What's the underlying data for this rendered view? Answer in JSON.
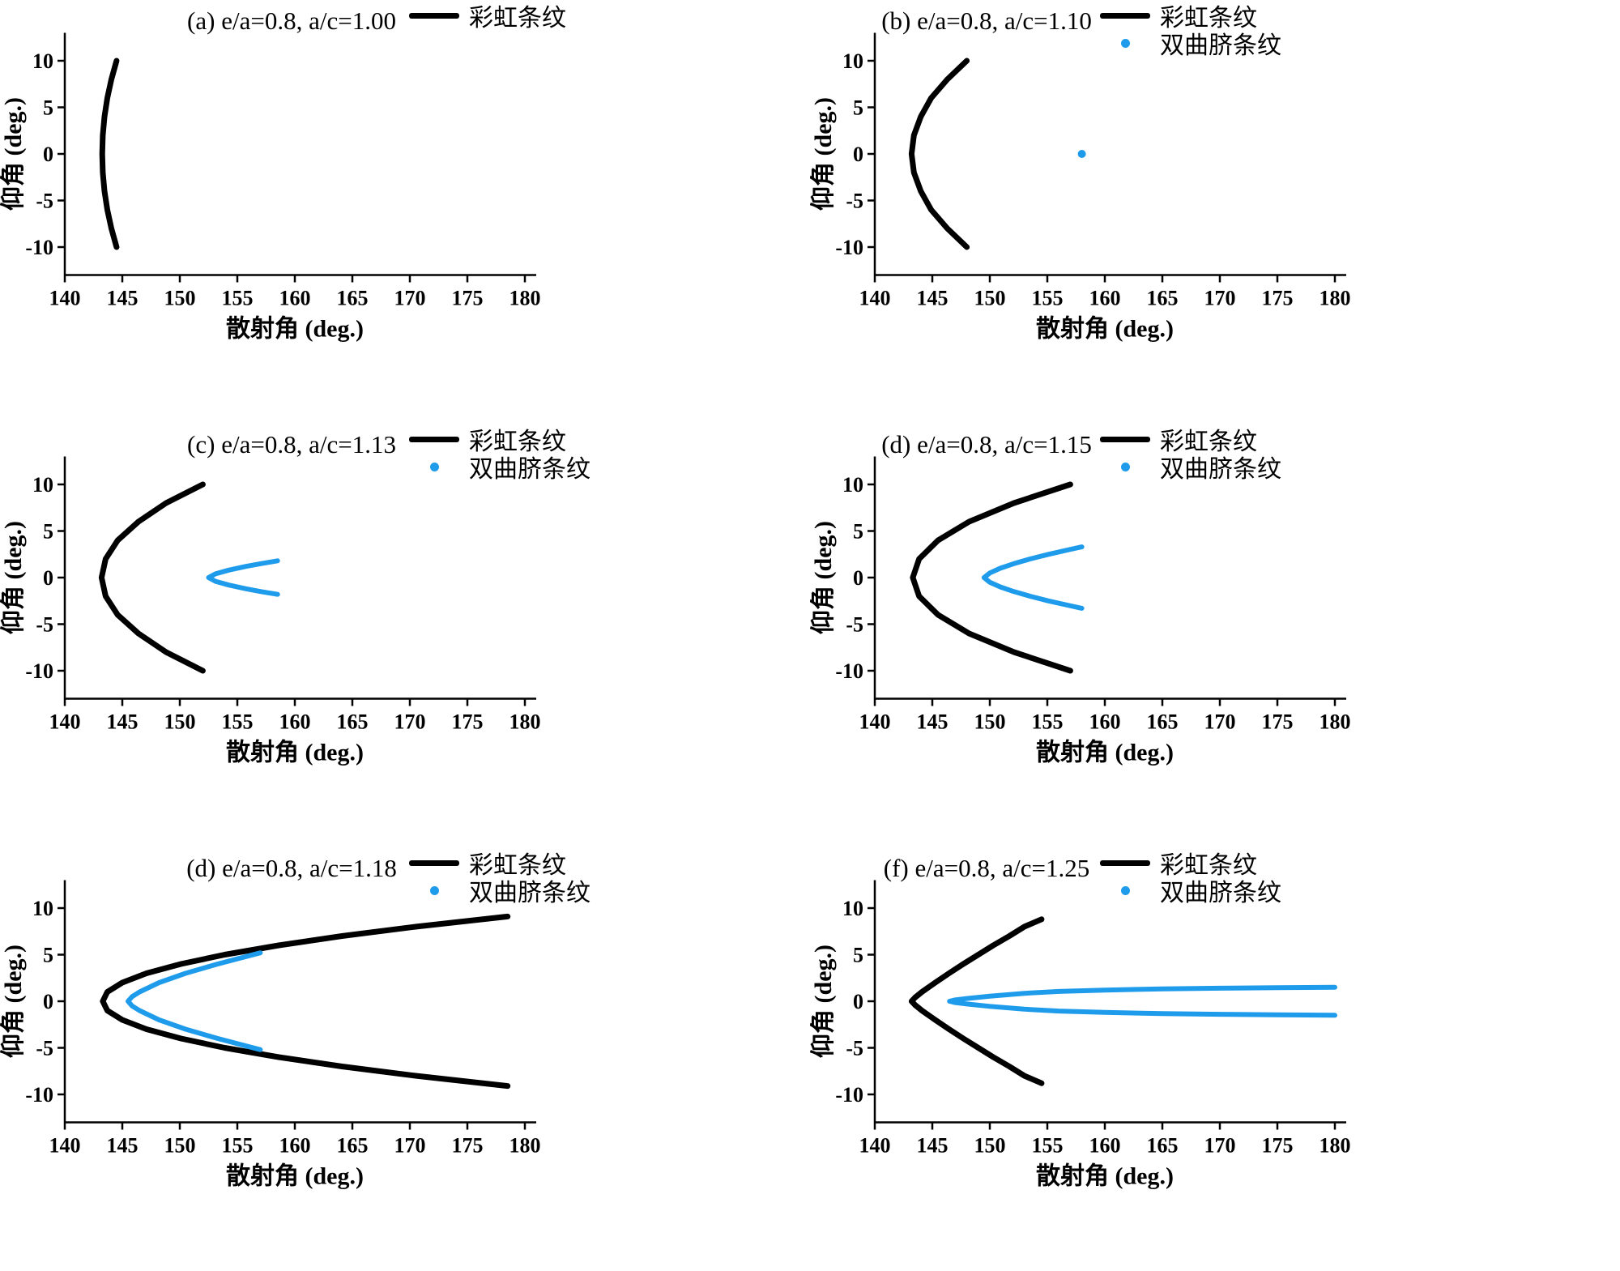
{
  "figure": {
    "background": "#ffffff",
    "colors": {
      "rainbow": "#000000",
      "hyperbolic": "#1E9CEB"
    }
  },
  "chart_data": [
    {
      "id": "a",
      "type": "line",
      "title": "(a) e/a=0.8, a/c=1.00",
      "xlabel": "散射角 (deg.)",
      "ylabel": "仰角 (deg.)",
      "xlim": [
        140,
        181
      ],
      "ylim": [
        -13,
        13
      ],
      "xticks": [
        140,
        145,
        150,
        155,
        160,
        165,
        170,
        175,
        180
      ],
      "yticks": [
        -10,
        -5,
        0,
        5,
        10
      ],
      "grid": false,
      "legend": [
        {
          "label": "彩虹条纹",
          "color": "#000000",
          "marker": "line"
        }
      ],
      "series": [
        {
          "name": "彩虹条纹",
          "color": "#000000",
          "style": "line",
          "width": 7,
          "points": [
            [
              144.5,
              10
            ],
            [
              144.05,
              8
            ],
            [
              143.7,
              6
            ],
            [
              143.45,
              4
            ],
            [
              143.3,
              2
            ],
            [
              143.25,
              0
            ],
            [
              143.3,
              -2
            ],
            [
              143.45,
              -4
            ],
            [
              143.7,
              -6
            ],
            [
              144.05,
              -8
            ],
            [
              144.5,
              -10
            ]
          ]
        }
      ]
    },
    {
      "id": "b",
      "type": "line",
      "title": "(b) e/a=0.8, a/c=1.10",
      "xlabel": "散射角 (deg.)",
      "ylabel": "仰角 (deg.)",
      "xlim": [
        140,
        181
      ],
      "ylim": [
        -13,
        13
      ],
      "xticks": [
        140,
        145,
        150,
        155,
        160,
        165,
        170,
        175,
        180
      ],
      "yticks": [
        -10,
        -5,
        0,
        5,
        10
      ],
      "grid": false,
      "legend": [
        {
          "label": "彩虹条纹",
          "color": "#000000",
          "marker": "line"
        },
        {
          "label": "双曲脐条纹",
          "color": "#1E9CEB",
          "marker": "dot"
        }
      ],
      "series": [
        {
          "name": "彩虹条纹",
          "color": "#000000",
          "style": "line",
          "width": 7,
          "points": [
            [
              148,
              10
            ],
            [
              146.3,
              8
            ],
            [
              144.9,
              6
            ],
            [
              144,
              4
            ],
            [
              143.4,
              2
            ],
            [
              143.2,
              0
            ],
            [
              143.4,
              -2
            ],
            [
              144,
              -4
            ],
            [
              144.9,
              -6
            ],
            [
              146.3,
              -8
            ],
            [
              148,
              -10
            ]
          ]
        },
        {
          "name": "双曲脐条纹",
          "color": "#1E9CEB",
          "style": "dot",
          "width": 6,
          "points": [
            [
              158,
              0
            ]
          ]
        }
      ]
    },
    {
      "id": "c",
      "type": "line",
      "title": "(c) e/a=0.8, a/c=1.13",
      "xlabel": "散射角 (deg.)",
      "ylabel": "仰角 (deg.)",
      "xlim": [
        140,
        181
      ],
      "ylim": [
        -13,
        13
      ],
      "xticks": [
        140,
        145,
        150,
        155,
        160,
        165,
        170,
        175,
        180
      ],
      "yticks": [
        -10,
        -5,
        0,
        5,
        10
      ],
      "grid": false,
      "legend": [
        {
          "label": "彩虹条纹",
          "color": "#000000",
          "marker": "line"
        },
        {
          "label": "双曲脐条纹",
          "color": "#1E9CEB",
          "marker": "dot"
        }
      ],
      "series": [
        {
          "name": "彩虹条纹",
          "color": "#000000",
          "style": "line",
          "width": 7,
          "points": [
            [
              152,
              10
            ],
            [
              148.8,
              8
            ],
            [
              146.4,
              6
            ],
            [
              144.6,
              4
            ],
            [
              143.55,
              2
            ],
            [
              143.2,
              0
            ],
            [
              143.55,
              -2
            ],
            [
              144.6,
              -4
            ],
            [
              146.4,
              -6
            ],
            [
              148.8,
              -8
            ],
            [
              152,
              -10
            ]
          ]
        },
        {
          "name": "双曲脐条纹",
          "color": "#1E9CEB",
          "style": "line",
          "width": 6,
          "points": [
            [
              158.5,
              1.8
            ],
            [
              157.05,
              1.5
            ],
            [
              155.75,
              1.2
            ],
            [
              154.25,
              0.8
            ],
            [
              153.1,
              0.4
            ],
            [
              152.5,
              0
            ],
            [
              153.1,
              -0.4
            ],
            [
              154.25,
              -0.8
            ],
            [
              155.75,
              -1.2
            ],
            [
              157.05,
              -1.5
            ],
            [
              158.5,
              -1.8
            ]
          ]
        }
      ]
    },
    {
      "id": "d",
      "type": "line",
      "title": "(d) e/a=0.8, a/c=1.15",
      "xlabel": "散射角 (deg.)",
      "ylabel": "仰角 (deg.)",
      "xlim": [
        140,
        181
      ],
      "ylim": [
        -13,
        13
      ],
      "xticks": [
        140,
        145,
        150,
        155,
        160,
        165,
        170,
        175,
        180
      ],
      "yticks": [
        -10,
        -5,
        0,
        5,
        10
      ],
      "grid": false,
      "legend": [
        {
          "label": "彩虹条纹",
          "color": "#000000",
          "marker": "line"
        },
        {
          "label": "双曲脐条纹",
          "color": "#1E9CEB",
          "marker": "dot"
        }
      ],
      "series": [
        {
          "name": "彩虹条纹",
          "color": "#000000",
          "style": "line",
          "width": 7,
          "points": [
            [
              157,
              10
            ],
            [
              152.1,
              8
            ],
            [
              148.2,
              6
            ],
            [
              145.5,
              4
            ],
            [
              143.85,
              2
            ],
            [
              143.3,
              0
            ],
            [
              143.85,
              -2
            ],
            [
              145.5,
              -4
            ],
            [
              148.2,
              -6
            ],
            [
              152.1,
              -8
            ],
            [
              157,
              -10
            ]
          ]
        },
        {
          "name": "双曲脐条纹",
          "color": "#1E9CEB",
          "style": "line",
          "width": 6,
          "points": [
            [
              158,
              3.3
            ],
            [
              156.9,
              3
            ],
            [
              155.1,
              2.5
            ],
            [
              153.5,
              2
            ],
            [
              152.1,
              1.5
            ],
            [
              150.9,
              1
            ],
            [
              150,
              0.5
            ],
            [
              149.5,
              0
            ],
            [
              150,
              -0.5
            ],
            [
              150.9,
              -1
            ],
            [
              152.1,
              -1.5
            ],
            [
              153.5,
              -2
            ],
            [
              155.1,
              -2.5
            ],
            [
              156.9,
              -3
            ],
            [
              158,
              -3.3
            ]
          ]
        }
      ]
    },
    {
      "id": "e",
      "type": "line",
      "title": "(d) e/a=0.8, a/c=1.18",
      "xlabel": "散射角 (deg.)",
      "ylabel": "仰角 (deg.)",
      "xlim": [
        140,
        181
      ],
      "ylim": [
        -13,
        13
      ],
      "xticks": [
        140,
        145,
        150,
        155,
        160,
        165,
        170,
        175,
        180
      ],
      "yticks": [
        -10,
        -5,
        0,
        5,
        10
      ],
      "grid": false,
      "legend": [
        {
          "label": "彩虹条纹",
          "color": "#000000",
          "marker": "line"
        },
        {
          "label": "双曲脐条纹",
          "color": "#1E9CEB",
          "marker": "dot"
        }
      ],
      "series": [
        {
          "name": "彩虹条纹",
          "color": "#000000",
          "style": "line",
          "width": 7,
          "points": [
            [
              178.5,
              9.1
            ],
            [
              170.5,
              8
            ],
            [
              164.1,
              7
            ],
            [
              158.6,
              6
            ],
            [
              153.9,
              5
            ],
            [
              150.1,
              4
            ],
            [
              147.1,
              3
            ],
            [
              145,
              2
            ],
            [
              143.7,
              1
            ],
            [
              143.3,
              0
            ],
            [
              143.7,
              -1
            ],
            [
              145,
              -2
            ],
            [
              147.1,
              -3
            ],
            [
              150.1,
              -4
            ],
            [
              153.9,
              -5
            ],
            [
              158.6,
              -6
            ],
            [
              164.1,
              -7
            ],
            [
              170.5,
              -8
            ],
            [
              178.5,
              -9.1
            ]
          ]
        },
        {
          "name": "双曲脐条纹",
          "color": "#1E9CEB",
          "style": "line",
          "width": 6,
          "points": [
            [
              157,
              5.2
            ],
            [
              153.3,
              4
            ],
            [
              150.5,
              3
            ],
            [
              148.2,
              2
            ],
            [
              146.5,
              1
            ],
            [
              145.85,
              0.5
            ],
            [
              145.5,
              0
            ],
            [
              145.85,
              -0.5
            ],
            [
              146.5,
              -1
            ],
            [
              148.2,
              -2
            ],
            [
              150.5,
              -3
            ],
            [
              153.3,
              -4
            ],
            [
              157,
              -5.2
            ]
          ]
        }
      ]
    },
    {
      "id": "f",
      "type": "line",
      "title": "(f) e/a=0.8, a/c=1.25",
      "xlabel": "散射角 (deg.)",
      "ylabel": "仰角 (deg.)",
      "xlim": [
        140,
        181
      ],
      "ylim": [
        -13,
        13
      ],
      "xticks": [
        140,
        145,
        150,
        155,
        160,
        165,
        170,
        175,
        180
      ],
      "yticks": [
        -10,
        -5,
        0,
        5,
        10
      ],
      "grid": false,
      "legend": [
        {
          "label": "彩虹条纹",
          "color": "#000000",
          "marker": "line"
        },
        {
          "label": "双曲脐条纹",
          "color": "#1E9CEB",
          "marker": "dot"
        }
      ],
      "series": [
        {
          "name": "彩虹条纹",
          "color": "#000000",
          "style": "line",
          "width": 7,
          "points": [
            [
              154.5,
              8.8
            ],
            [
              153,
              8
            ],
            [
              151.7,
              7
            ],
            [
              150.3,
              6
            ],
            [
              149,
              5
            ],
            [
              147.7,
              4
            ],
            [
              146.45,
              3
            ],
            [
              145.25,
              2
            ],
            [
              144.1,
              1
            ],
            [
              143.5,
              0.4
            ],
            [
              143.2,
              0
            ],
            [
              143.5,
              -0.4
            ],
            [
              144.1,
              -1
            ],
            [
              145.25,
              -2
            ],
            [
              146.45,
              -3
            ],
            [
              147.7,
              -4
            ],
            [
              149,
              -5
            ],
            [
              150.3,
              -6
            ],
            [
              151.7,
              -7
            ],
            [
              153,
              -8
            ],
            [
              154.5,
              -8.8
            ]
          ]
        },
        {
          "name": "双曲脐条纹",
          "color": "#1E9CEB",
          "style": "line",
          "width": 6,
          "points": [
            [
              180,
              1.5
            ],
            [
              175,
              1.45
            ],
            [
              170,
              1.4
            ],
            [
              165,
              1.33
            ],
            [
              160,
              1.2
            ],
            [
              156,
              1.05
            ],
            [
              153,
              0.85
            ],
            [
              150,
              0.55
            ],
            [
              148,
              0.3
            ],
            [
              147,
              0.15
            ],
            [
              146.5,
              0
            ],
            [
              147,
              -0.15
            ],
            [
              148,
              -0.3
            ],
            [
              150,
              -0.55
            ],
            [
              153,
              -0.85
            ],
            [
              156,
              -1.05
            ],
            [
              160,
              -1.2
            ],
            [
              165,
              -1.33
            ],
            [
              170,
              -1.4
            ],
            [
              175,
              -1.45
            ],
            [
              180,
              -1.5
            ]
          ]
        }
      ]
    }
  ]
}
